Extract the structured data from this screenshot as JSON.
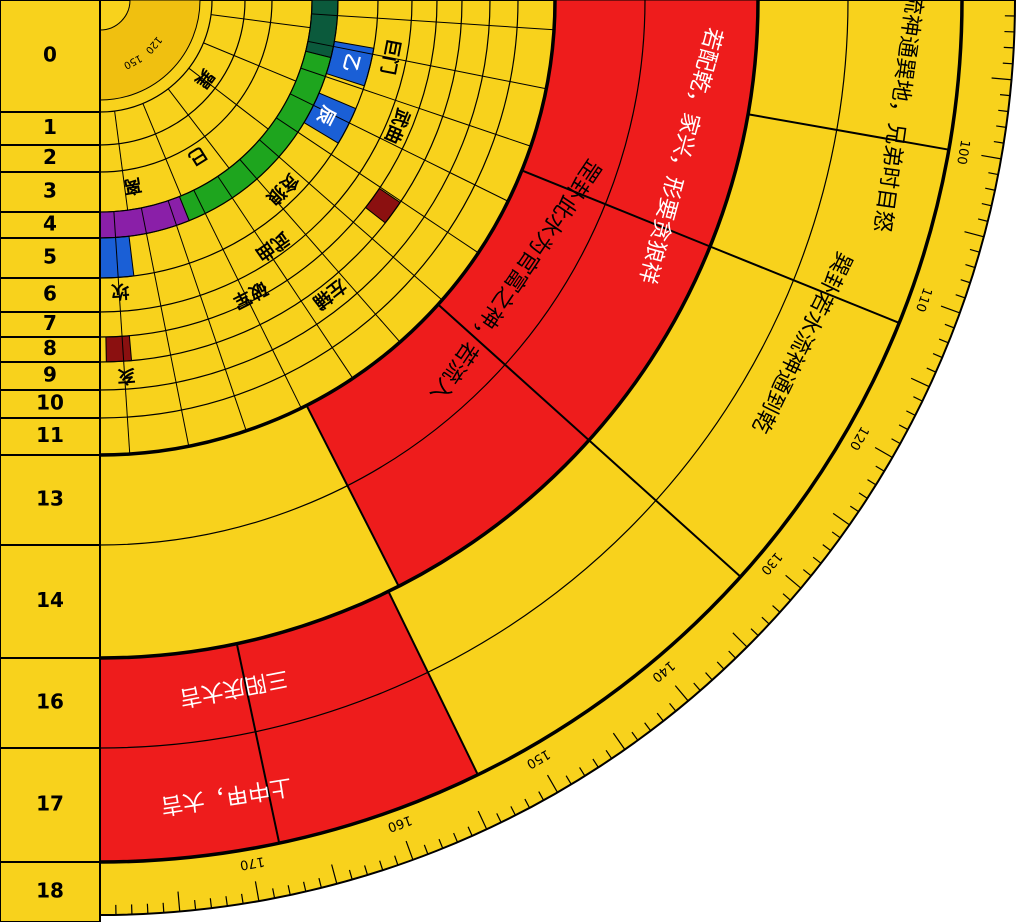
{
  "rows": [
    "0",
    "1",
    "2",
    "3",
    "4",
    "5",
    "6",
    "7",
    "8",
    "9",
    "10",
    "11",
    "13",
    "14",
    "16",
    "17",
    "18"
  ],
  "scale": {
    "outer": [
      100,
      110,
      120,
      130,
      140,
      150,
      160,
      170
    ],
    "inner": [
      120,
      150
    ]
  },
  "labels": [
    "巨门",
    "武曲",
    "乙",
    "辰",
    "巽",
    "巳",
    "离",
    "贪狼",
    "武曲",
    "破军",
    "坎",
    "左辅",
    "亥"
  ],
  "phrases": [
    "若配乾，家兴，形要贪狼祥",
    "罡卦此水为官富之神，若流入",
    "流神通巽地，兄弟时目怒",
    "巽卦若水流神通到乾",
    "三阳庆大吉",
    "上中甲，大吉"
  ]
}
